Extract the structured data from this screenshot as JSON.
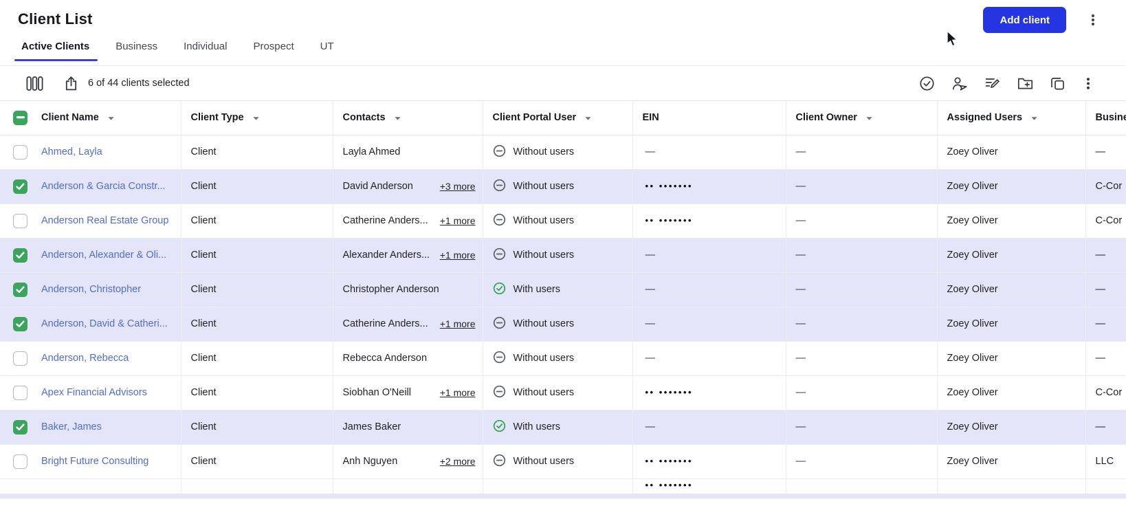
{
  "page_title": "Client List",
  "header": {
    "add_client_label": "Add client"
  },
  "tabs": [
    {
      "label": "Active Clients",
      "active": true
    },
    {
      "label": "Business",
      "active": false
    },
    {
      "label": "Individual",
      "active": false
    },
    {
      "label": "Prospect",
      "active": false
    },
    {
      "label": "UT",
      "active": false
    }
  ],
  "toolbar": {
    "left_icons": [
      {
        "name": "columns-icon"
      },
      {
        "name": "export-icon"
      }
    ],
    "selection_text": "6 of 44 clients selected",
    "right_icons": [
      {
        "name": "approve-circle-icon"
      },
      {
        "name": "user-send-icon"
      },
      {
        "name": "note-edit-icon"
      },
      {
        "name": "folder-add-icon"
      },
      {
        "name": "copy-icon"
      },
      {
        "name": "kebab-menu-icon"
      }
    ]
  },
  "table": {
    "header_checkbox_state": "indeterminate",
    "columns": [
      {
        "label": "Client Name",
        "sortable": true
      },
      {
        "label": "Client Type",
        "sortable": true
      },
      {
        "label": "Contacts",
        "sortable": true
      },
      {
        "label": "Client Portal User",
        "sortable": true
      },
      {
        "label": "EIN",
        "sortable": false
      },
      {
        "label": "Client Owner",
        "sortable": true
      },
      {
        "label": "Assigned Users",
        "sortable": true
      },
      {
        "label": "Busine",
        "sortable": false
      }
    ],
    "portal_labels": {
      "with": "With users",
      "without": "Without users"
    },
    "ein_masked": "•• •••••••",
    "empty_value": "—",
    "rows": [
      {
        "name": "Ahmed, Layla",
        "selected": false,
        "type": "Client",
        "contact": "Layla Ahmed",
        "more": "",
        "portal": "without",
        "ein": "",
        "owner": "—",
        "assigned": "Zoey Oliver",
        "business": "—"
      },
      {
        "name": "Anderson & Garcia Constr...",
        "selected": true,
        "type": "Client",
        "contact": "David Anderson",
        "more": "+3 more",
        "portal": "without",
        "ein": "masked",
        "owner": "—",
        "assigned": "Zoey Oliver",
        "business": "C-Cor"
      },
      {
        "name": "Anderson Real Estate Group",
        "selected": false,
        "type": "Client",
        "contact": "Catherine Anders...",
        "more": "+1 more",
        "portal": "without",
        "ein": "masked",
        "owner": "—",
        "assigned": "Zoey Oliver",
        "business": "C-Cor"
      },
      {
        "name": "Anderson, Alexander & Oli...",
        "selected": true,
        "type": "Client",
        "contact": "Alexander Anders...",
        "more": "+1 more",
        "portal": "without",
        "ein": "",
        "owner": "—",
        "assigned": "Zoey Oliver",
        "business": "—"
      },
      {
        "name": "Anderson, Christopher",
        "selected": true,
        "type": "Client",
        "contact": "Christopher Anderson",
        "more": "",
        "portal": "with",
        "ein": "",
        "owner": "—",
        "assigned": "Zoey Oliver",
        "business": "—"
      },
      {
        "name": "Anderson, David & Catheri...",
        "selected": true,
        "type": "Client",
        "contact": "Catherine Anders...",
        "more": "+1 more",
        "portal": "without",
        "ein": "",
        "owner": "—",
        "assigned": "Zoey Oliver",
        "business": "—"
      },
      {
        "name": "Anderson, Rebecca",
        "selected": false,
        "type": "Client",
        "contact": "Rebecca Anderson",
        "more": "",
        "portal": "without",
        "ein": "",
        "owner": "—",
        "assigned": "Zoey Oliver",
        "business": "—"
      },
      {
        "name": "Apex Financial Advisors",
        "selected": false,
        "type": "Client",
        "contact": "Siobhan O'Neill",
        "more": "+1 more",
        "portal": "without",
        "ein": "masked",
        "owner": "—",
        "assigned": "Zoey Oliver",
        "business": "C-Cor"
      },
      {
        "name": "Baker, James",
        "selected": true,
        "type": "Client",
        "contact": "James Baker",
        "more": "",
        "portal": "with",
        "ein": "",
        "owner": "—",
        "assigned": "Zoey Oliver",
        "business": "—"
      },
      {
        "name": "Bright Future Consulting",
        "selected": false,
        "type": "Client",
        "contact": "Anh Nguyen",
        "more": "+2 more",
        "portal": "without",
        "ein": "masked",
        "owner": "—",
        "assigned": "Zoey Oliver",
        "business": "LLC"
      }
    ],
    "partial_row": {
      "ein": "masked"
    }
  },
  "colors": {
    "accent_blue": "#2435e1",
    "link_blue": "#4f6cd9",
    "selected_row_bg": "#e4e5f8",
    "checkbox_green": "#3ba55d",
    "portal_green": "#2da44e",
    "tab_underline": "#3c3bf0"
  }
}
